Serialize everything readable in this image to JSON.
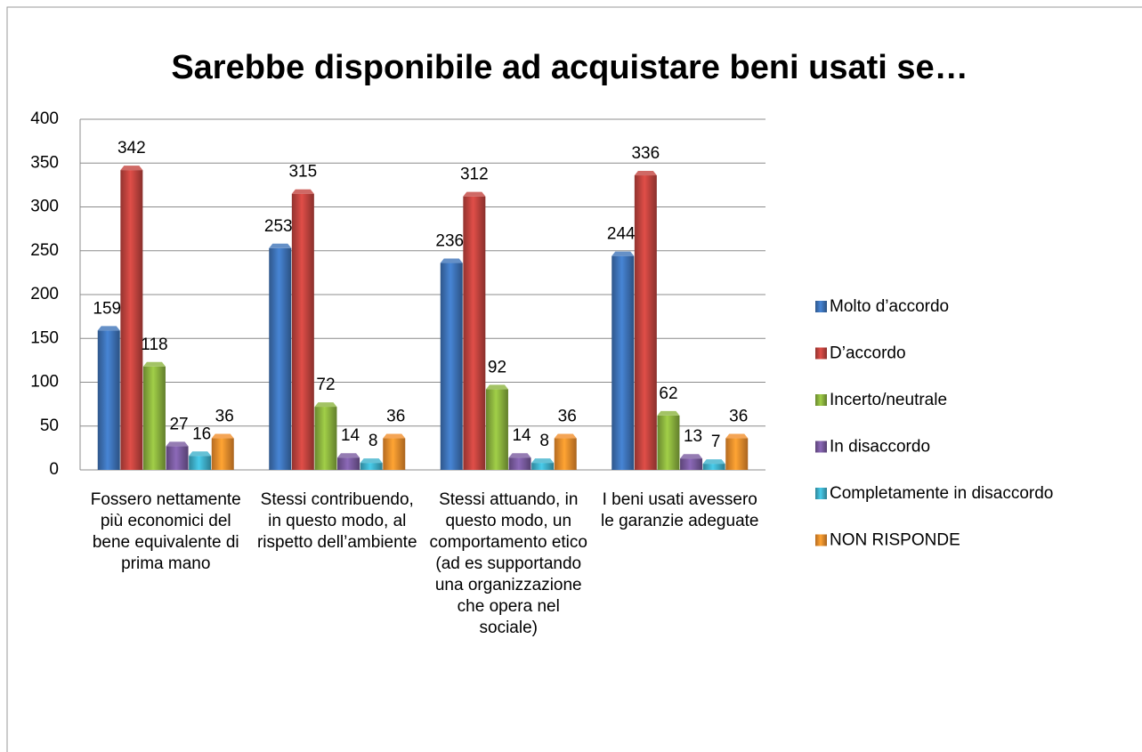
{
  "chart_data": {
    "type": "bar",
    "title": "Sarebbe disponibile ad acquistare beni usati se…",
    "categories": [
      "Fossero nettamente più economici del bene equivalente di prima mano",
      "Stessi contribuendo, in questo modo, al rispetto dell’ambiente",
      "Stessi attuando, in questo modo, un comportamento etico (ad es supportando una organizzazione che opera nel sociale)",
      "I beni usati avessero le garanzie adeguate"
    ],
    "series": [
      {
        "name": "Molto d’accordo",
        "color": "#3e74b9",
        "values": [
          159,
          253,
          236,
          244
        ]
      },
      {
        "name": "D’accordo",
        "color": "#c3443f",
        "values": [
          342,
          315,
          312,
          336
        ]
      },
      {
        "name": "Incerto/neutrale",
        "color": "#8cb43f",
        "values": [
          118,
          72,
          92,
          62
        ]
      },
      {
        "name": "In disaccordo",
        "color": "#7a5ba0",
        "values": [
          27,
          14,
          14,
          13
        ]
      },
      {
        "name": "Completamente in disaccordo",
        "color": "#3fb1cc",
        "values": [
          16,
          8,
          8,
          7
        ]
      },
      {
        "name": "NON RISPONDE",
        "color": "#f18f2c",
        "values": [
          36,
          36,
          36,
          36
        ]
      }
    ],
    "ylim": [
      0,
      400
    ],
    "yticks": [
      0,
      50,
      100,
      150,
      200,
      250,
      300,
      350,
      400
    ],
    "grid": true,
    "legend": "right"
  }
}
